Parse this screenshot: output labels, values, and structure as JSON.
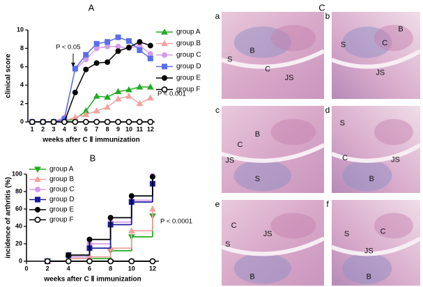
{
  "chart_data": [
    {
      "type": "line",
      "title": "A",
      "xlabel": "weeks after C Ⅱ immunization",
      "ylabel": "clinical score",
      "x": [
        1,
        2,
        3,
        4,
        5,
        6,
        7,
        8,
        9,
        10,
        11,
        12
      ],
      "xlim": [
        0.6,
        12.4
      ],
      "xticks": [
        1,
        2,
        3,
        4,
        5,
        6,
        7,
        8,
        9,
        10,
        11,
        12
      ],
      "ylim": [
        0,
        10
      ],
      "yticks": [
        0,
        2,
        4,
        6,
        8,
        10
      ],
      "legend": "right",
      "annotations": [
        "P < 0.05",
        "P < 0.001"
      ],
      "series": [
        {
          "name": "group A",
          "color": "#22aa22",
          "marker": "triangle-up",
          "values": [
            0,
            0,
            0,
            0.1,
            0.3,
            1.2,
            2.8,
            2.7,
            3.3,
            3.5,
            3.8,
            3.8
          ]
        },
        {
          "name": "group B",
          "color": "#f4a0a0",
          "marker": "triangle-up",
          "values": [
            0,
            0,
            0,
            0.1,
            0.5,
            0.8,
            1.2,
            1.6,
            2.5,
            2.8,
            2.0,
            2.6
          ]
        },
        {
          "name": "group C",
          "color": "#d49be8",
          "marker": "circle",
          "values": [
            0,
            0,
            0,
            0.5,
            5.7,
            6.8,
            8.0,
            8.2,
            8.2,
            8.0,
            8.3,
            7.4
          ]
        },
        {
          "name": "group D",
          "color": "#5b6ee8",
          "marker": "square",
          "values": [
            0,
            0,
            0,
            0.3,
            5.8,
            7.3,
            8.5,
            8.7,
            9.2,
            8.8,
            7.8,
            6.9
          ]
        },
        {
          "name": "group E",
          "color": "#000000",
          "marker": "circle",
          "values": [
            0,
            0,
            0,
            0,
            3.2,
            5.7,
            6.4,
            6.5,
            7.7,
            8.1,
            8.7,
            8.3
          ]
        },
        {
          "name": "group F",
          "color": "#000000",
          "marker": "circle-open",
          "values": [
            0,
            0,
            0,
            0,
            0,
            0,
            0,
            0,
            0,
            0,
            0,
            0
          ]
        }
      ]
    },
    {
      "type": "step",
      "title": "B",
      "xlabel": "weeks after C Ⅱ  immunization",
      "ylabel": "incidence of arthritis (%)",
      "x": [
        2,
        4,
        6,
        8,
        10,
        12
      ],
      "xlim": [
        0,
        12.6
      ],
      "xticks": [
        0,
        2,
        4,
        6,
        8,
        10,
        12
      ],
      "ylim": [
        0,
        100
      ],
      "yticks": [
        0,
        20,
        40,
        60,
        80,
        100
      ],
      "legend": "upper left",
      "annotations": [
        "P < 0.0001"
      ],
      "series": [
        {
          "name": "group A",
          "color": "#22aa22",
          "marker": "triangle-down",
          "values": [
            0,
            3,
            3,
            12,
            28,
            52
          ]
        },
        {
          "name": "group B",
          "color": "#f4a0a0",
          "marker": "triangle-up",
          "values": [
            0,
            3,
            5,
            15,
            35,
            60
          ]
        },
        {
          "name": "group C",
          "color": "#d49be8",
          "marker": "circle",
          "values": [
            0,
            5,
            20,
            45,
            70,
            98
          ]
        },
        {
          "name": "group D",
          "color": "#1a1aa0",
          "marker": "square",
          "values": [
            0,
            7,
            15,
            42,
            68,
            89
          ]
        },
        {
          "name": "group E",
          "color": "#000000",
          "marker": "circle",
          "values": [
            0,
            7,
            25,
            50,
            75,
            97
          ]
        },
        {
          "name": "group F",
          "color": "#000000",
          "marker": "circle-open",
          "values": [
            0,
            0,
            0,
            0,
            0,
            0
          ]
        }
      ]
    }
  ],
  "panel_c": {
    "title": "C",
    "images": [
      {
        "letter": "a",
        "labels": [
          "S",
          "B",
          "C",
          "JS"
        ]
      },
      {
        "letter": "b",
        "labels": [
          "S",
          "B",
          "C",
          "JS"
        ]
      },
      {
        "letter": "c",
        "labels": [
          "C",
          "B",
          "JS",
          "S"
        ]
      },
      {
        "letter": "d",
        "labels": [
          "S",
          "C",
          "JS",
          "B"
        ]
      },
      {
        "letter": "e",
        "labels": [
          "C",
          "JS",
          "S",
          "B"
        ]
      },
      {
        "letter": "f",
        "labels": [
          "S",
          "C",
          "JS",
          "B"
        ]
      }
    ]
  }
}
